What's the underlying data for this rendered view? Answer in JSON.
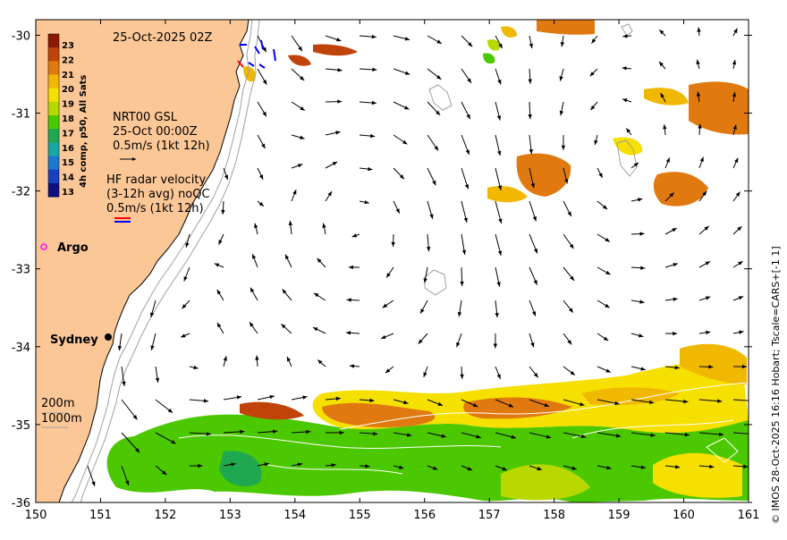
{
  "map": {
    "timestamp": "25-Oct-2025 02Z",
    "lon_range": [
      150,
      161
    ],
    "lat_range": [
      -36,
      -29.8
    ],
    "lon_ticks": [
      "150",
      "151",
      "152",
      "153",
      "154",
      "155",
      "156",
      "157",
      "158",
      "159",
      "160",
      "161"
    ],
    "lat_ticks": [
      "-30",
      "-31",
      "-32",
      "-33",
      "-34",
      "-35",
      "-36"
    ],
    "colors": {
      "land": "#fbc797",
      "arrow": "#000000",
      "isobath": "#a0a0a0",
      "background": "#ffffff"
    }
  },
  "colorbar": {
    "label": "4h comp, p50, All Sats",
    "ticks": [
      "23",
      "22",
      "21",
      "20",
      "19",
      "18",
      "17",
      "16",
      "15",
      "14",
      "13"
    ],
    "colors": [
      "#8b1a00",
      "#c0440a",
      "#e07a10",
      "#f0b800",
      "#f5e000",
      "#b8d800",
      "#4cc800",
      "#20a850",
      "#14a8a0",
      "#1e78d0",
      "#1840c0",
      "#0c1080"
    ]
  },
  "legend": {
    "gsl_title": "NRT00 GSL",
    "gsl_time": "25-Oct 00:00Z",
    "gsl_scale": "0.5m/s (1kt 12h)",
    "radar_title": "HF radar velocity",
    "radar_avg": "(3-12h avg) noQC",
    "radar_scale": "0.5m/s (1kt 12h)",
    "argo_label": "Argo",
    "city_label": "Sydney",
    "depth_200": "200m",
    "depth_1000": "1000m"
  },
  "credit": "© IMOS 28-Oct-2025 16:16 Hobart; Tscale=CARS+[-1 1]"
}
